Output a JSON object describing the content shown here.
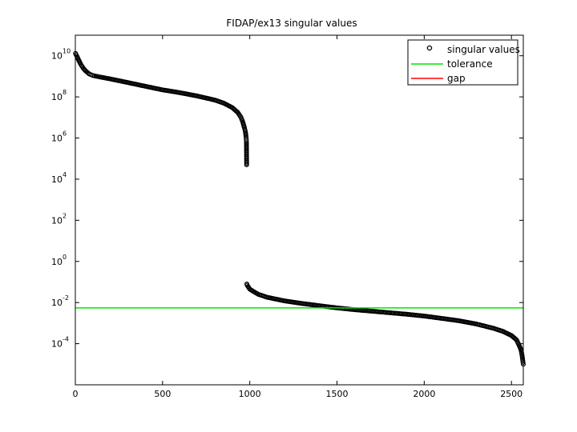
{
  "chart_data": {
    "type": "scatter",
    "title": "FIDAP/ex13 singular values",
    "xlabel": "",
    "ylabel": "",
    "xlim": [
      0,
      2568
    ],
    "ylim": [
      1e-06,
      100000000000.0
    ],
    "yscale": "log",
    "grid": false,
    "legend_position": "top-right",
    "x_ticks": [
      0,
      500,
      1000,
      1500,
      2000,
      2500
    ],
    "y_ticks": [
      {
        "value": 0.0001,
        "base": "10",
        "exp": "-4"
      },
      {
        "value": 0.01,
        "base": "10",
        "exp": "-2"
      },
      {
        "value": 1.0,
        "base": "10",
        "exp": "0"
      },
      {
        "value": 100.0,
        "base": "10",
        "exp": "2"
      },
      {
        "value": 10000.0,
        "base": "10",
        "exp": "4"
      },
      {
        "value": 1000000.0,
        "base": "10",
        "exp": "6"
      },
      {
        "value": 100000000.0,
        "base": "10",
        "exp": "8"
      },
      {
        "value": 10000000000.0,
        "base": "10",
        "exp": "10"
      }
    ],
    "series": [
      {
        "name": "singular values",
        "kind": "markers",
        "marker": "circle",
        "color": "#000000",
        "points": [
          [
            1,
            13000000000.0
          ],
          [
            5,
            11000000000.0
          ],
          [
            10,
            9000000000.0
          ],
          [
            20,
            6000000000.0
          ],
          [
            30,
            4000000000.0
          ],
          [
            45,
            2500000000.0
          ],
          [
            60,
            1800000000.0
          ],
          [
            80,
            1300000000.0
          ],
          [
            100,
            1100000000.0
          ],
          [
            150,
            900000000.0
          ],
          [
            200,
            750000000.0
          ],
          [
            300,
            500000000.0
          ],
          [
            400,
            330000000.0
          ],
          [
            500,
            220000000.0
          ],
          [
            600,
            160000000.0
          ],
          [
            700,
            110000000.0
          ],
          [
            800,
            70000000.0
          ],
          [
            850,
            50000000.0
          ],
          [
            900,
            30000000.0
          ],
          [
            930,
            18000000.0
          ],
          [
            950,
            10000000.0
          ],
          [
            960,
            6000000.0
          ],
          [
            970,
            3000000.0
          ],
          [
            975,
            2000000.0
          ],
          [
            978,
            1300000.0
          ],
          [
            980,
            900000.0
          ],
          [
            981,
            600000.0
          ],
          [
            982,
            50000.0
          ],
          [
            983,
            0.08
          ],
          [
            985,
            0.07
          ],
          [
            990,
            0.06
          ],
          [
            1000,
            0.045
          ],
          [
            1020,
            0.035
          ],
          [
            1050,
            0.025
          ],
          [
            1100,
            0.018
          ],
          [
            1200,
            0.012
          ],
          [
            1300,
            0.009
          ],
          [
            1400,
            0.007
          ],
          [
            1500,
            0.0055
          ],
          [
            1600,
            0.0045
          ],
          [
            1700,
            0.0038
          ],
          [
            1800,
            0.0032
          ],
          [
            1900,
            0.0027
          ],
          [
            2000,
            0.0022
          ],
          [
            2100,
            0.0017
          ],
          [
            2200,
            0.0013
          ],
          [
            2300,
            0.0009
          ],
          [
            2400,
            0.00055
          ],
          [
            2450,
            0.0004
          ],
          [
            2500,
            0.00025
          ],
          [
            2530,
            0.00015
          ],
          [
            2545,
            8e-05
          ],
          [
            2555,
            5e-05
          ],
          [
            2560,
            3e-05
          ],
          [
            2565,
            1.5e-05
          ],
          [
            2568,
            1e-05
          ]
        ]
      },
      {
        "name": "tolerance",
        "kind": "hline",
        "value": 0.0055,
        "color": "#00e600"
      },
      {
        "name": "gap",
        "kind": "line",
        "color": "#ff0000"
      }
    ]
  }
}
